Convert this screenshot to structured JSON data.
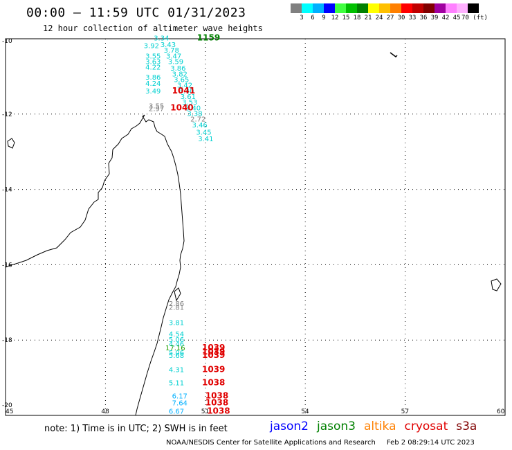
{
  "header": {
    "title": "00:00 – 11:59 UTC 01/31/2023",
    "subtitle": "12 hour collection of altimeter wave heights"
  },
  "legend": {
    "colors": [
      "#808080",
      "#00ffff",
      "#00b0ff",
      "#0000ff",
      "#40ff40",
      "#00c000",
      "#008000",
      "#ffff00",
      "#ffc000",
      "#ff8000",
      "#ff0000",
      "#c00000",
      "#800000",
      "#a000a0",
      "#ff80ff",
      "#ffb0ff",
      "#000000"
    ],
    "labels": [
      "3",
      "6",
      "9",
      "12",
      "15",
      "18",
      "21",
      "24",
      "27",
      "30",
      "33",
      "36",
      "39",
      "42",
      "45",
      "70 (ft)"
    ]
  },
  "map_axes": {
    "lon_ticks": [
      "45",
      "48",
      "51",
      "54",
      "57",
      "60"
    ],
    "lat_ticks": [
      "-10",
      "-12",
      "-14",
      "-16",
      "-18",
      "-20"
    ],
    "lon_range": [
      45,
      60
    ],
    "lat_range": [
      -20,
      -10
    ]
  },
  "observations": [
    {
      "lon": 49.45,
      "lat": -10.05,
      "text": "3.34",
      "color": "#00d0d0"
    },
    {
      "lon": 49.15,
      "lat": -10.25,
      "text": "3.92",
      "color": "#00d0d0"
    },
    {
      "lon": 49.65,
      "lat": -10.22,
      "text": "3.43",
      "color": "#00d0d0"
    },
    {
      "lon": 49.75,
      "lat": -10.37,
      "text": "3.78",
      "color": "#00d0d0"
    },
    {
      "lon": 49.2,
      "lat": -10.52,
      "text": "3.55",
      "color": "#00d0d0"
    },
    {
      "lon": 49.82,
      "lat": -10.52,
      "text": "3.47",
      "color": "#00d0d0"
    },
    {
      "lon": 49.2,
      "lat": -10.67,
      "text": "3.63",
      "color": "#00d0d0"
    },
    {
      "lon": 49.88,
      "lat": -10.67,
      "text": "3.59",
      "color": "#00d0d0"
    },
    {
      "lon": 49.2,
      "lat": -10.82,
      "text": "4.22",
      "color": "#00d0d0"
    },
    {
      "lon": 49.95,
      "lat": -10.85,
      "text": "3.86",
      "color": "#00d0d0"
    },
    {
      "lon": 50.0,
      "lat": -11.0,
      "text": "3.82",
      "color": "#00d0d0"
    },
    {
      "lon": 49.2,
      "lat": -11.08,
      "text": "3.86",
      "color": "#00d0d0"
    },
    {
      "lon": 50.05,
      "lat": -11.15,
      "text": "3.65",
      "color": "#00d0d0"
    },
    {
      "lon": 49.2,
      "lat": -11.25,
      "text": "4.24",
      "color": "#00d0d0"
    },
    {
      "lon": 50.15,
      "lat": -11.3,
      "text": "3.42",
      "color": "#00d0d0"
    },
    {
      "lon": 49.2,
      "lat": -11.45,
      "text": "3.49",
      "color": "#00d0d0"
    },
    {
      "lon": 50.2,
      "lat": -11.45,
      "text": "3.40",
      "color": "#00d0d0"
    },
    {
      "lon": 50.25,
      "lat": -11.6,
      "text": "3.61",
      "color": "#00d0d0"
    },
    {
      "lon": 50.3,
      "lat": -11.75,
      "text": "3.53",
      "color": "#00d0d0"
    },
    {
      "lon": 49.3,
      "lat": -11.85,
      "text": "3.55",
      "color": "#808080"
    },
    {
      "lon": 49.3,
      "lat": -11.92,
      "text": "2.97",
      "color": "#808080"
    },
    {
      "lon": 50.4,
      "lat": -11.9,
      "text": "3.40",
      "color": "#00d0d0"
    },
    {
      "lon": 50.45,
      "lat": -12.05,
      "text": "3.38",
      "color": "#00d0d0"
    },
    {
      "lon": 50.55,
      "lat": -12.2,
      "text": "2.72",
      "color": "#808080"
    },
    {
      "lon": 50.6,
      "lat": -12.35,
      "text": "3.46",
      "color": "#00d0d0"
    },
    {
      "lon": 50.72,
      "lat": -12.55,
      "text": "3.45",
      "color": "#00d0d0"
    },
    {
      "lon": 50.78,
      "lat": -12.72,
      "text": "3.41",
      "color": "#00d0d0"
    },
    {
      "lon": 49.9,
      "lat": -17.1,
      "text": "2.86",
      "color": "#808080"
    },
    {
      "lon": 49.9,
      "lat": -17.2,
      "text": "2.81",
      "color": "#808080"
    },
    {
      "lon": 49.9,
      "lat": -17.6,
      "text": "3.81",
      "color": "#00d0d0"
    },
    {
      "lon": 49.9,
      "lat": -17.9,
      "text": "4.54",
      "color": "#00d0d0"
    },
    {
      "lon": 49.9,
      "lat": -18.05,
      "text": "5.06",
      "color": "#00d0d0"
    },
    {
      "lon": 49.9,
      "lat": -18.17,
      "text": "4.46",
      "color": "#00d0d0"
    },
    {
      "lon": 49.8,
      "lat": -18.27,
      "text": "17.16",
      "color": "#20a000"
    },
    {
      "lon": 49.9,
      "lat": -18.4,
      "text": "5.06",
      "color": "#00d0d0"
    },
    {
      "lon": 49.9,
      "lat": -18.47,
      "text": "5.68",
      "color": "#00d0d0"
    },
    {
      "lon": 49.9,
      "lat": -18.85,
      "text": "4.31",
      "color": "#00d0d0"
    },
    {
      "lon": 49.9,
      "lat": -19.2,
      "text": "5.11",
      "color": "#00d0d0"
    },
    {
      "lon": 50.0,
      "lat": -19.55,
      "text": "6.17",
      "color": "#00b0ff"
    },
    {
      "lon": 50.0,
      "lat": -19.73,
      "text": "7.64",
      "color": "#00b0ff"
    },
    {
      "lon": 49.9,
      "lat": -19.95,
      "text": "6.67",
      "color": "#00b0ff"
    }
  ],
  "pass_times": [
    {
      "lon": 50.75,
      "lat": -10.05,
      "text": "1159",
      "color": "#008000"
    },
    {
      "lon": 50.0,
      "lat": -11.45,
      "text": "1041",
      "color": "#e00000"
    },
    {
      "lon": 49.95,
      "lat": -11.9,
      "text": "1040",
      "color": "#e00000"
    },
    {
      "lon": 50.9,
      "lat": -18.27,
      "text": "1039",
      "color": "#e00000"
    },
    {
      "lon": 50.9,
      "lat": -18.38,
      "text": "1039",
      "color": "#e00000"
    },
    {
      "lon": 50.9,
      "lat": -18.47,
      "text": "1039",
      "color": "#e00000"
    },
    {
      "lon": 50.9,
      "lat": -18.85,
      "text": "1039",
      "color": "#e00000"
    },
    {
      "lon": 50.9,
      "lat": -19.2,
      "text": "1038",
      "color": "#e00000"
    },
    {
      "lon": 51.0,
      "lat": -19.55,
      "text": "1038",
      "color": "#e00000"
    },
    {
      "lon": 51.0,
      "lat": -19.73,
      "text": "1038",
      "color": "#e00000"
    },
    {
      "lon": 51.05,
      "lat": -19.95,
      "text": "1038",
      "color": "#e00000"
    }
  ],
  "footer": {
    "note": "note: 1) Time is in UTC; 2) SWH is in feet",
    "satellites": [
      {
        "name": "jason2",
        "color": "#0000ff"
      },
      {
        "name": "jason3",
        "color": "#008000"
      },
      {
        "name": "altika",
        "color": "#ff8000"
      },
      {
        "name": "cryosat",
        "color": "#e00000"
      },
      {
        "name": "s3a",
        "color": "#800000"
      }
    ],
    "credit": "NOAA/NESDIS Center for Satellite Applications and Research",
    "timestamp": "Feb  2 08:29:14 UTC 2023"
  }
}
